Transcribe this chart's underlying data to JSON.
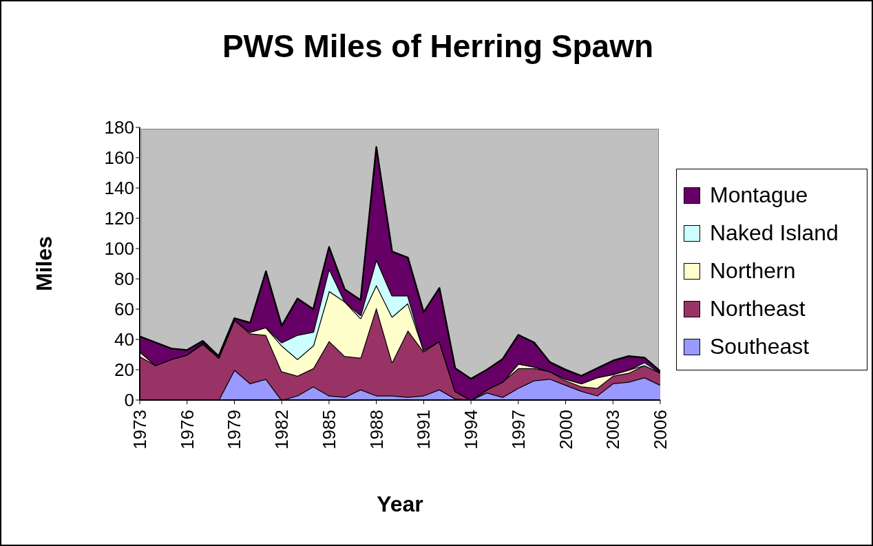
{
  "chart_data": {
    "type": "area",
    "title": "PWS Miles of Herring Spawn",
    "xlabel": "Year",
    "ylabel": "Miles",
    "stacked": true,
    "grid": false,
    "legend": "right",
    "x": [
      1973,
      1974,
      1975,
      1976,
      1977,
      1978,
      1979,
      1980,
      1981,
      1982,
      1983,
      1984,
      1985,
      1986,
      1987,
      1988,
      1989,
      1990,
      1991,
      1992,
      1993,
      1994,
      1995,
      1996,
      1997,
      1998,
      1999,
      2000,
      2001,
      2002,
      2003,
      2004,
      2005,
      2006
    ],
    "xlim": [
      1973,
      2006
    ],
    "xticks": [
      1973,
      1976,
      1979,
      1982,
      1985,
      1988,
      1991,
      1994,
      1997,
      2000,
      2003,
      2006
    ],
    "ylim": [
      0,
      180
    ],
    "yticks": [
      0,
      20,
      40,
      60,
      80,
      100,
      120,
      140,
      160,
      180
    ],
    "series": [
      {
        "name": "Southeast",
        "color": "#9999ff",
        "values": [
          0,
          0,
          0,
          0,
          0,
          0,
          20,
          11,
          14,
          0,
          3,
          9,
          3,
          2,
          7,
          3,
          3,
          2,
          3,
          7,
          1,
          0,
          5,
          2,
          8,
          13,
          14,
          10,
          6,
          3,
          11,
          12,
          15,
          10
        ]
      },
      {
        "name": "Northeast",
        "color": "#993366",
        "values": [
          29,
          23,
          27,
          30,
          37,
          28,
          33,
          33,
          29,
          19,
          13,
          12,
          36,
          27,
          21,
          58,
          22,
          44,
          29,
          32,
          5,
          0,
          2,
          10,
          13,
          8,
          5,
          3,
          3,
          5,
          5,
          6,
          8,
          8
        ]
      },
      {
        "name": "Northern",
        "color": "#ffffcc",
        "values": [
          3,
          0,
          0,
          0,
          1,
          0,
          0,
          1,
          5,
          17,
          11,
          15,
          33,
          36,
          26,
          15,
          30,
          18,
          1,
          0,
          0,
          0,
          0,
          0,
          3,
          1,
          0,
          1,
          2,
          7,
          1,
          2,
          0,
          0
        ]
      },
      {
        "name": "Naked Island",
        "color": "#ccffff",
        "values": [
          0,
          0,
          0,
          0,
          0,
          0,
          0,
          0,
          0,
          2,
          16,
          9,
          15,
          0,
          2,
          17,
          14,
          5,
          0,
          0,
          0,
          0,
          0,
          0,
          0,
          0,
          0,
          0,
          0,
          0,
          0,
          0,
          2,
          0
        ]
      },
      {
        "name": "Montague",
        "color": "#660066",
        "values": [
          10,
          15,
          7,
          3,
          1,
          1,
          1,
          6,
          37,
          11,
          24,
          15,
          14,
          8,
          10,
          74,
          29,
          25,
          25,
          35,
          15,
          14,
          13,
          15,
          19,
          16,
          6,
          6,
          5,
          6,
          9,
          9,
          3,
          1
        ]
      }
    ]
  }
}
